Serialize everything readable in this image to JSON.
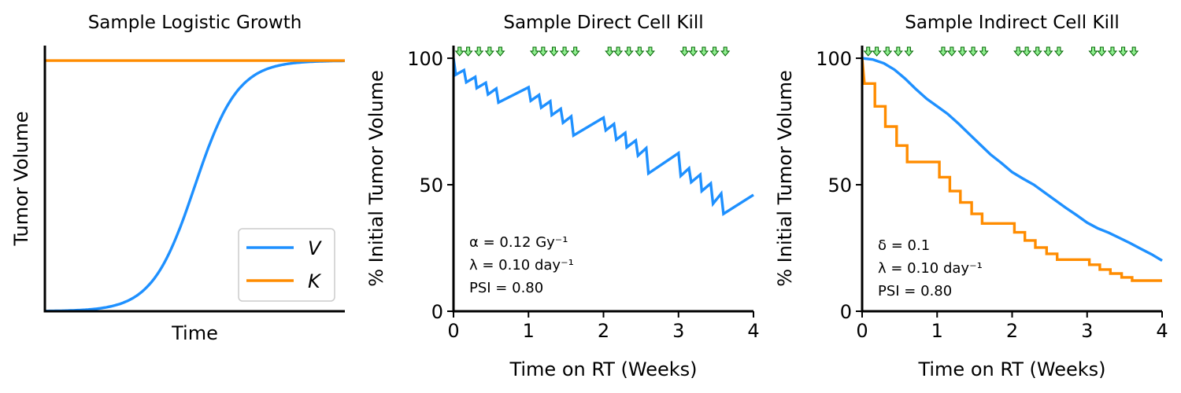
{
  "colors": {
    "V": "#1e90ff",
    "K": "#ff8c00",
    "dose_arrow_fill": "#90ee90",
    "dose_arrow_stroke": "#006400"
  },
  "chart_data": [
    {
      "type": "line",
      "title": "Sample Logistic Growth",
      "xlabel": "Time",
      "ylabel": "Tumor Volume",
      "xlim": [
        0,
        1
      ],
      "ylim": [
        0,
        1.06
      ],
      "ticks_visible": false,
      "legend": {
        "placement": "bottom-right",
        "entries": [
          "V",
          "K"
        ]
      },
      "series": [
        {
          "name": "V",
          "color": "#1e90ff",
          "kind": "logistic",
          "x_mid": 0.5,
          "steepness": 14,
          "max": 1.0
        },
        {
          "name": "K",
          "color": "#ff8c00",
          "kind": "constant",
          "value": 1.0
        }
      ]
    },
    {
      "type": "line",
      "title": "Sample Direct Cell Kill",
      "xlabel": "Time on RT (Weeks)",
      "ylabel": "% Initial Tumor Volume",
      "xlim": [
        0,
        4
      ],
      "ylim": [
        0,
        105
      ],
      "xticks": [
        "0",
        "1",
        "2",
        "3",
        "4"
      ],
      "yticks": [
        "0",
        "50",
        "100"
      ],
      "dose_days_weeks": [
        0.0286,
        0.1429,
        0.2857,
        0.4286,
        0.5714,
        1.0286,
        1.1429,
        1.2857,
        1.4286,
        1.5714,
        2.0286,
        2.1429,
        2.2857,
        2.4286,
        2.5714,
        3.0286,
        3.1429,
        3.2857,
        3.4286,
        3.5714
      ],
      "annotation": [
        "α = 0.12 Gy⁻¹",
        "λ = 0.10 day⁻¹",
        "PSI = 0.80"
      ],
      "series": [
        {
          "name": "V",
          "color": "#1e90ff",
          "points": [
            [
              0,
              100
            ],
            [
              0.03,
              93.5
            ],
            [
              0.14,
              95.3
            ],
            [
              0.17,
              90.5
            ],
            [
              0.29,
              92.6
            ],
            [
              0.31,
              88.2
            ],
            [
              0.43,
              90.3
            ],
            [
              0.46,
              85.7
            ],
            [
              0.57,
              88
            ],
            [
              0.6,
              82.5
            ],
            [
              1.0,
              88.5
            ],
            [
              1.03,
              83.2
            ],
            [
              1.14,
              85.5
            ],
            [
              1.17,
              80.5
            ],
            [
              1.29,
              83
            ],
            [
              1.31,
              77.5
            ],
            [
              1.43,
              80
            ],
            [
              1.46,
              74.5
            ],
            [
              1.57,
              77
            ],
            [
              1.6,
              69.5
            ],
            [
              2.0,
              76.5
            ],
            [
              2.03,
              71.5
            ],
            [
              2.14,
              74
            ],
            [
              2.17,
              67.8
            ],
            [
              2.29,
              70.5
            ],
            [
              2.31,
              64.8
            ],
            [
              2.43,
              67.5
            ],
            [
              2.46,
              61.5
            ],
            [
              2.57,
              64.5
            ],
            [
              2.6,
              54.5
            ],
            [
              3.0,
              62.5
            ],
            [
              3.03,
              53.5
            ],
            [
              3.14,
              56.5
            ],
            [
              3.17,
              51
            ],
            [
              3.29,
              54
            ],
            [
              3.31,
              47.5
            ],
            [
              3.43,
              50.5
            ],
            [
              3.46,
              42.5
            ],
            [
              3.57,
              46.5
            ],
            [
              3.6,
              38.5
            ],
            [
              4.0,
              46
            ]
          ]
        }
      ]
    },
    {
      "type": "line",
      "title": "Sample Indirect Cell Kill",
      "xlabel": "Time on RT (Weeks)",
      "ylabel": "% Initial Tumor Volume",
      "xlim": [
        0,
        4
      ],
      "ylim": [
        0,
        105
      ],
      "xticks": [
        "0",
        "1",
        "2",
        "3",
        "4"
      ],
      "yticks": [
        "0",
        "50",
        "100"
      ],
      "dose_days_weeks": [
        0.0286,
        0.1429,
        0.2857,
        0.4286,
        0.5714,
        1.0286,
        1.1429,
        1.2857,
        1.4286,
        1.5714,
        2.0286,
        2.1429,
        2.2857,
        2.4286,
        2.5714,
        3.0286,
        3.1429,
        3.2857,
        3.4286,
        3.5714
      ],
      "annotation": [
        "δ = 0.1",
        "λ = 0.10 day⁻¹",
        "PSI = 0.80"
      ],
      "series": [
        {
          "name": "V",
          "color": "#1e90ff",
          "points": [
            [
              0,
              100
            ],
            [
              0.14,
              99.5
            ],
            [
              0.29,
              98
            ],
            [
              0.43,
              95.5
            ],
            [
              0.57,
              92
            ],
            [
              0.71,
              88
            ],
            [
              0.86,
              84
            ],
            [
              1.0,
              81
            ],
            [
              1.14,
              78
            ],
            [
              1.29,
              74
            ],
            [
              1.43,
              70
            ],
            [
              1.57,
              66
            ],
            [
              1.71,
              62
            ],
            [
              1.86,
              58.5
            ],
            [
              2.0,
              55
            ],
            [
              2.14,
              52.5
            ],
            [
              2.29,
              50
            ],
            [
              2.43,
              47
            ],
            [
              2.57,
              44
            ],
            [
              2.71,
              41
            ],
            [
              2.86,
              38
            ],
            [
              3.0,
              35
            ],
            [
              3.14,
              32.8
            ],
            [
              3.29,
              31
            ],
            [
              3.43,
              29
            ],
            [
              3.57,
              27
            ],
            [
              3.71,
              24.8
            ],
            [
              3.86,
              22.5
            ],
            [
              4.0,
              20
            ]
          ]
        },
        {
          "name": "K",
          "color": "#ff8c00",
          "points": [
            [
              0,
              100
            ],
            [
              0.03,
              90
            ],
            [
              0.17,
              90
            ],
            [
              0.17,
              81
            ],
            [
              0.31,
              81
            ],
            [
              0.31,
              73
            ],
            [
              0.46,
              73
            ],
            [
              0.46,
              65.5
            ],
            [
              0.6,
              65.5
            ],
            [
              0.6,
              59
            ],
            [
              1.03,
              59
            ],
            [
              1.03,
              53
            ],
            [
              1.17,
              53
            ],
            [
              1.17,
              47.5
            ],
            [
              1.31,
              47.5
            ],
            [
              1.31,
              43
            ],
            [
              1.46,
              43
            ],
            [
              1.46,
              38.5
            ],
            [
              1.6,
              38.5
            ],
            [
              1.6,
              34.7
            ],
            [
              2.03,
              34.7
            ],
            [
              2.03,
              31.2
            ],
            [
              2.17,
              31.2
            ],
            [
              2.17,
              28
            ],
            [
              2.31,
              28
            ],
            [
              2.31,
              25.2
            ],
            [
              2.46,
              25.2
            ],
            [
              2.46,
              22.7
            ],
            [
              2.6,
              22.7
            ],
            [
              2.6,
              20.4
            ],
            [
              3.03,
              20.4
            ],
            [
              3.03,
              18.4
            ],
            [
              3.17,
              18.4
            ],
            [
              3.17,
              16.5
            ],
            [
              3.31,
              16.5
            ],
            [
              3.31,
              14.9
            ],
            [
              3.46,
              14.9
            ],
            [
              3.46,
              13.4
            ],
            [
              3.6,
              13.4
            ],
            [
              3.6,
              12.1
            ],
            [
              4.0,
              12.1
            ]
          ]
        }
      ]
    }
  ]
}
